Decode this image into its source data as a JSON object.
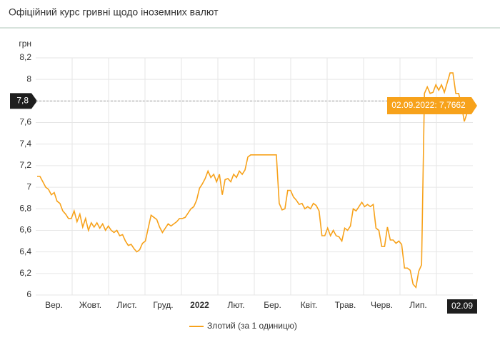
{
  "chart_data": {
    "type": "line",
    "title": "Офіційний курс гривні щодо іноземних валют",
    "y_unit": "грн",
    "x_labels": [
      "Вер.",
      "Жовт.",
      "Лист.",
      "Груд.",
      "2022",
      "Лют.",
      "Бер.",
      "Квіт.",
      "Трав.",
      "Черв.",
      "Лип."
    ],
    "crosshair_x_label": "02.09",
    "tooltip": {
      "label": "02.09.2022: 7,7662",
      "value": 7.7662
    },
    "series": [
      {
        "name": "Злотий (за 1 одиницю)",
        "color": "#f7a21b",
        "values": [
          7.1,
          7.1,
          7.05,
          7.0,
          6.98,
          6.93,
          6.95,
          6.87,
          6.85,
          6.78,
          6.75,
          6.71,
          6.71,
          6.78,
          6.68,
          6.75,
          6.63,
          6.71,
          6.6,
          6.67,
          6.63,
          6.67,
          6.62,
          6.66,
          6.6,
          6.64,
          6.6,
          6.58,
          6.6,
          6.55,
          6.56,
          6.5,
          6.46,
          6.47,
          6.43,
          6.4,
          6.42,
          6.48,
          6.5,
          6.62,
          6.74,
          6.72,
          6.7,
          6.63,
          6.58,
          6.62,
          6.66,
          6.64,
          6.66,
          6.68,
          6.71,
          6.71,
          6.72,
          6.76,
          6.8,
          6.82,
          6.88,
          6.99,
          7.03,
          7.08,
          7.15,
          7.09,
          7.12,
          7.05,
          7.12,
          6.93,
          7.07,
          7.08,
          7.05,
          7.12,
          7.09,
          7.15,
          7.12,
          7.16,
          7.28,
          7.3,
          7.3,
          7.3,
          7.3,
          7.3,
          7.3,
          7.3,
          7.3,
          7.3,
          7.3,
          6.85,
          6.79,
          6.8,
          6.97,
          6.97,
          6.91,
          6.88,
          6.84,
          6.85,
          6.8,
          6.82,
          6.8,
          6.85,
          6.83,
          6.78,
          6.55,
          6.55,
          6.62,
          6.55,
          6.6,
          6.55,
          6.54,
          6.5,
          6.62,
          6.6,
          6.64,
          6.8,
          6.78,
          6.82,
          6.86,
          6.82,
          6.84,
          6.82,
          6.84,
          6.62,
          6.6,
          6.45,
          6.45,
          6.63,
          6.51,
          6.51,
          6.48,
          6.5,
          6.47,
          6.25,
          6.25,
          6.23,
          6.1,
          6.07,
          6.22,
          6.28,
          7.87,
          7.93,
          7.87,
          7.88,
          7.95,
          7.9,
          7.95,
          7.88,
          7.97,
          8.06,
          8.06,
          7.87,
          7.87,
          7.76,
          7.61,
          7.69,
          7.72,
          7.7662
        ]
      }
    ],
    "ylim": [
      6,
      8.2
    ],
    "yticks": [
      6,
      {
        "value": 6.2,
        "label": "6,2"
      },
      {
        "value": 6.4,
        "label": "6,4"
      },
      {
        "value": 6.6,
        "label": "6,6"
      },
      {
        "value": 6.8,
        "label": "6,8"
      },
      7,
      {
        "value": 7.2,
        "label": "7,2"
      },
      {
        "value": 7.4,
        "label": "7,4"
      },
      {
        "value": 7.6,
        "label": "7,6"
      },
      {
        "value": 7.8,
        "label": "7,8"
      },
      8,
      {
        "value": 8.2,
        "label": "8,2"
      }
    ],
    "grid": true
  }
}
